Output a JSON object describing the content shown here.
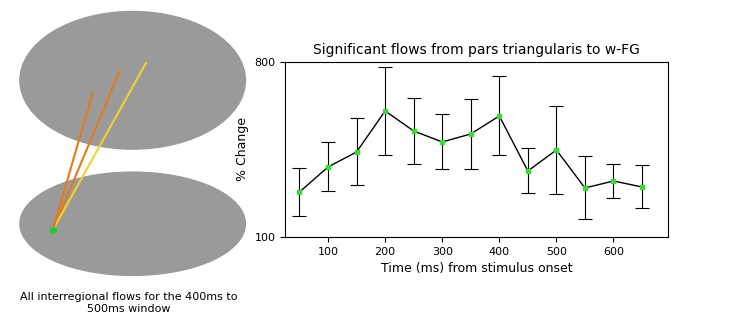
{
  "chart_data": {
    "type": "line",
    "title": "Significant flows from pars triangularis to w-FG",
    "x_label": "Time (ms) from stimulus onset",
    "y_label": "% Change",
    "annotations": [
      "All interregional flows for the 400ms to 500ms window"
    ],
    "x": [
      50,
      100,
      150,
      200,
      250,
      300,
      350,
      400,
      450,
      500,
      550,
      600,
      650
    ],
    "values": [
      280,
      380,
      440,
      604,
      524,
      480,
      512,
      584,
      364,
      448,
      296,
      324,
      300
    ],
    "errors": [
      96,
      98,
      134,
      176,
      132,
      110,
      140,
      158,
      90,
      176,
      126,
      68,
      86
    ],
    "color": "#000000",
    "marker": "square",
    "xlim": [
      25,
      695
    ],
    "xticks": [
      100,
      200,
      300,
      400,
      500,
      600
    ],
    "ylim": [
      100,
      800
    ],
    "yticks": [
      100,
      800
    ],
    "grid": true
  }
}
